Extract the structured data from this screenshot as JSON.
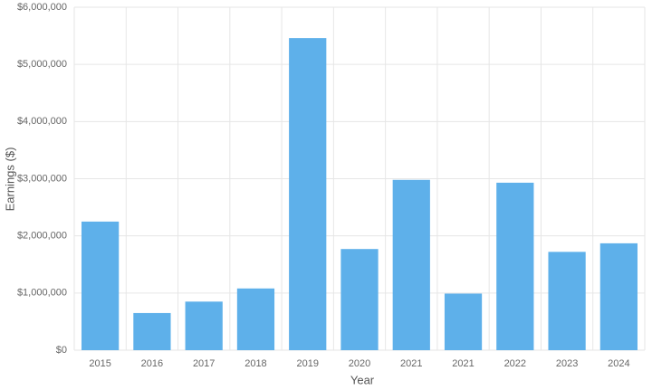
{
  "chart_data": {
    "type": "bar",
    "x_label": "Year",
    "y_label": "Earnings ($)",
    "categories": [
      "2015",
      "2016",
      "2017",
      "2018",
      "2019",
      "2020",
      "2021",
      "2021",
      "2022",
      "2023",
      "2024"
    ],
    "values": [
      2250000,
      650000,
      850000,
      1080000,
      5460000,
      1770000,
      2980000,
      990000,
      2930000,
      1720000,
      1870000
    ],
    "color": "#5eb0ea",
    "ylim": [
      0,
      6000000
    ],
    "yticks": [
      {
        "value": 0,
        "label": "$0"
      },
      {
        "value": 1000000,
        "label": "$1,000,000"
      },
      {
        "value": 2000000,
        "label": "$2,000,000"
      },
      {
        "value": 3000000,
        "label": "$3,000,000"
      },
      {
        "value": 4000000,
        "label": "$4,000,000"
      },
      {
        "value": 5000000,
        "label": "$5,000,000"
      },
      {
        "value": 6000000,
        "label": "$6,000,000"
      }
    ],
    "grid": true
  }
}
